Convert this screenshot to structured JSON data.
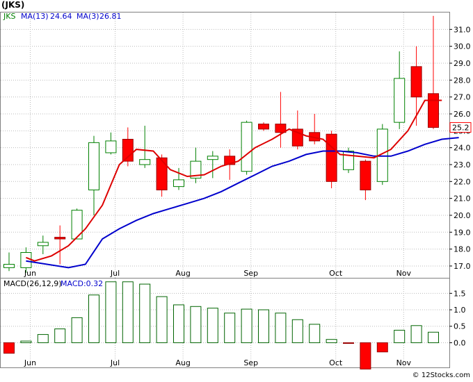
{
  "header": {
    "ticker_label": "(JKS)",
    "legend_symbol": "JKS",
    "ma13_label": "MA(13)",
    "ma13_value": "24.64",
    "ma3_label": "MA(3)",
    "ma3_value": "26.81"
  },
  "macd_header": {
    "label": "MACD(26,12,9)",
    "value_label": "MACD:0.32"
  },
  "watermark": "© 12Stocks.com",
  "colors": {
    "up_candle": "#008000",
    "down_candle": "#ff0000",
    "ma13": "#0000cc",
    "ma3": "#dd0000",
    "macd_bar": "#006400",
    "macd_neg": "#ff0000",
    "grid": "#bbbbbb",
    "border": "#808080"
  },
  "chart_data": [
    {
      "type": "candlestick",
      "name": "price",
      "title": "(JKS)",
      "x_ticks": [
        {
          "label": "Jun",
          "index": 1.25
        },
        {
          "label": "Jul",
          "index": 6.25
        },
        {
          "label": "Aug",
          "index": 10.25
        },
        {
          "label": "Sep",
          "index": 14.25
        },
        {
          "label": "Oct",
          "index": 19.25
        },
        {
          "label": "Nov",
          "index": 23.25
        }
      ],
      "y_ticks": [
        17,
        18,
        19,
        20,
        21,
        22,
        23,
        24,
        25,
        26,
        27,
        28,
        29,
        30,
        31
      ],
      "ylim": [
        16.3,
        32.0
      ],
      "grid": true,
      "last_price_label": "25.2",
      "last_price": 25.2,
      "candles": [
        {
          "o": 16.9,
          "h": 17.8,
          "l": 16.7,
          "c": 17.1
        },
        {
          "o": 16.9,
          "h": 18.1,
          "l": 16.6,
          "c": 17.8
        },
        {
          "o": 18.2,
          "h": 18.8,
          "l": 17.7,
          "c": 18.4
        },
        {
          "o": 18.7,
          "h": 19.4,
          "l": 17.1,
          "c": 18.6
        },
        {
          "o": 18.6,
          "h": 20.4,
          "l": 18.6,
          "c": 20.3
        },
        {
          "o": 21.5,
          "h": 24.7,
          "l": 20.0,
          "c": 24.3
        },
        {
          "o": 23.7,
          "h": 24.9,
          "l": 23.6,
          "c": 24.4
        },
        {
          "o": 24.5,
          "h": 25.2,
          "l": 22.9,
          "c": 23.2
        },
        {
          "o": 23.0,
          "h": 25.3,
          "l": 22.8,
          "c": 23.3
        },
        {
          "o": 23.4,
          "h": 23.6,
          "l": 21.1,
          "c": 21.5
        },
        {
          "o": 21.7,
          "h": 22.8,
          "l": 21.5,
          "c": 22.1
        },
        {
          "o": 22.2,
          "h": 24.0,
          "l": 21.9,
          "c": 23.2
        },
        {
          "o": 23.3,
          "h": 23.8,
          "l": 22.2,
          "c": 23.5
        },
        {
          "o": 23.5,
          "h": 23.9,
          "l": 22.1,
          "c": 23.0
        },
        {
          "o": 22.6,
          "h": 25.6,
          "l": 22.4,
          "c": 25.5
        },
        {
          "o": 25.4,
          "h": 25.5,
          "l": 25.0,
          "c": 25.1
        },
        {
          "o": 25.4,
          "h": 27.3,
          "l": 24.0,
          "c": 24.9
        },
        {
          "o": 25.1,
          "h": 26.2,
          "l": 23.9,
          "c": 24.1
        },
        {
          "o": 24.9,
          "h": 26.0,
          "l": 24.2,
          "c": 24.4
        },
        {
          "o": 24.8,
          "h": 25.0,
          "l": 21.6,
          "c": 22.0
        },
        {
          "o": 22.7,
          "h": 24.0,
          "l": 22.5,
          "c": 23.8
        },
        {
          "o": 23.2,
          "h": 23.3,
          "l": 20.9,
          "c": 21.5
        },
        {
          "o": 22.0,
          "h": 25.4,
          "l": 21.8,
          "c": 25.1
        },
        {
          "o": 25.5,
          "h": 29.7,
          "l": 25.1,
          "c": 28.1
        },
        {
          "o": 28.8,
          "h": 30.0,
          "l": 25.3,
          "c": 27.0
        },
        {
          "o": 27.2,
          "h": 31.8,
          "l": 25.1,
          "c": 25.2
        }
      ],
      "series": [
        {
          "name": "MA(13)",
          "points": [
            [
              1,
              17.3
            ],
            [
              3.5,
              16.9
            ],
            [
              4.5,
              17.1
            ],
            [
              5.5,
              18.6
            ],
            [
              6.5,
              19.2
            ],
            [
              7.5,
              19.7
            ],
            [
              8.5,
              20.1
            ],
            [
              9.5,
              20.4
            ],
            [
              10.5,
              20.7
            ],
            [
              11.5,
              21.0
            ],
            [
              12.5,
              21.4
            ],
            [
              13.5,
              21.9
            ],
            [
              14.5,
              22.4
            ],
            [
              15.5,
              22.9
            ],
            [
              16.5,
              23.2
            ],
            [
              17.5,
              23.6
            ],
            [
              18.5,
              23.8
            ],
            [
              19.5,
              23.8
            ],
            [
              20.5,
              23.7
            ],
            [
              21.5,
              23.5
            ],
            [
              22.5,
              23.5
            ],
            [
              23.5,
              23.8
            ],
            [
              24.5,
              24.2
            ],
            [
              25.5,
              24.5
            ],
            [
              26.5,
              24.6
            ]
          ]
        },
        {
          "name": "MA(3)",
          "points": [
            [
              1,
              17.5
            ],
            [
              1.5,
              17.3
            ],
            [
              2.5,
              17.6
            ],
            [
              3.5,
              18.2
            ],
            [
              4.5,
              19.2
            ],
            [
              5.5,
              20.6
            ],
            [
              6.5,
              23.0
            ],
            [
              7.5,
              23.9
            ],
            [
              8.5,
              23.8
            ],
            [
              9.5,
              22.7
            ],
            [
              10.5,
              22.3
            ],
            [
              11.5,
              22.4
            ],
            [
              12.5,
              22.9
            ],
            [
              13.5,
              23.2
            ],
            [
              14.5,
              24.0
            ],
            [
              15.5,
              24.5
            ],
            [
              16.5,
              25.1
            ],
            [
              17.5,
              24.7
            ],
            [
              18.5,
              24.5
            ],
            [
              19.5,
              23.6
            ],
            [
              20.5,
              23.5
            ],
            [
              21.5,
              23.4
            ],
            [
              22.5,
              23.9
            ],
            [
              23.5,
              25.0
            ],
            [
              24.5,
              26.8
            ],
            [
              25.5,
              26.8
            ]
          ]
        }
      ]
    },
    {
      "type": "bar",
      "name": "macd",
      "title": "MACD(26,12,9)",
      "y_ticks": [
        0.0,
        0.5,
        1.0,
        1.5
      ],
      "y_tick_labels": [
        "0.0",
        "0.5",
        "1.0",
        "1.5"
      ],
      "ylim": [
        -0.75,
        1.95
      ],
      "grid": true,
      "values": [
        -0.32,
        0.05,
        0.25,
        0.42,
        0.76,
        1.45,
        1.85,
        1.85,
        1.78,
        1.4,
        1.15,
        1.1,
        1.05,
        0.9,
        1.02,
        1.0,
        0.9,
        0.7,
        0.56,
        0.1,
        -0.02,
        -0.8,
        -0.28,
        0.38,
        0.52,
        0.32
      ]
    }
  ]
}
